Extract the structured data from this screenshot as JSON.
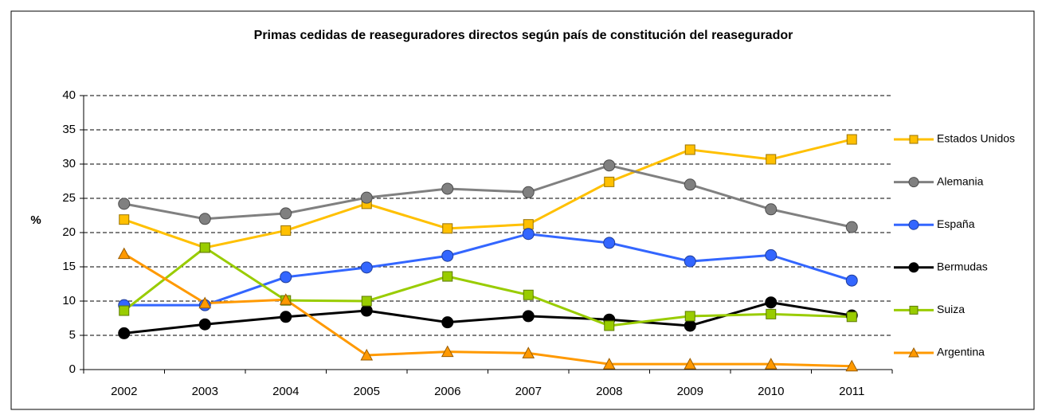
{
  "chart_data": {
    "type": "line",
    "title": "Primas cedidas de reaseguradores directos según país de constitución del reasegurador",
    "y_label": "%",
    "categories": [
      "2002",
      "2003",
      "2004",
      "2005",
      "2006",
      "2007",
      "2008",
      "2009",
      "2010",
      "2011"
    ],
    "series": [
      {
        "name": "Estados Unidos",
        "color": "#FFC000",
        "marker": "square",
        "values": [
          21.9,
          17.8,
          20.3,
          24.2,
          20.6,
          21.2,
          27.4,
          32.1,
          30.7,
          33.6
        ]
      },
      {
        "name": "Alemania",
        "color": "#808080",
        "marker": "circle",
        "values": [
          24.2,
          22.0,
          22.8,
          25.1,
          26.4,
          25.9,
          29.8,
          27.0,
          23.4,
          20.8
        ]
      },
      {
        "name": "España",
        "color": "#3366FF",
        "marker": "circle",
        "values": [
          9.4,
          9.4,
          13.5,
          14.9,
          16.6,
          19.8,
          18.5,
          15.8,
          16.7,
          13.0
        ]
      },
      {
        "name": "Bermudas",
        "color": "#000000",
        "marker": "circle",
        "values": [
          5.3,
          6.6,
          7.7,
          8.6,
          6.9,
          7.8,
          7.3,
          6.4,
          9.8,
          7.9
        ]
      },
      {
        "name": "Suiza",
        "color": "#99CC00",
        "marker": "square",
        "values": [
          8.6,
          17.8,
          10.1,
          10.0,
          13.6,
          10.9,
          6.4,
          7.8,
          8.1,
          7.7
        ]
      },
      {
        "name": "Argentina",
        "color": "#FF9900",
        "marker": "triangle",
        "values": [
          16.9,
          9.7,
          10.2,
          2.1,
          2.6,
          2.4,
          0.8,
          0.8,
          0.8,
          0.5
        ]
      }
    ],
    "ylim": [
      0,
      40
    ],
    "yticks": [
      0,
      5,
      10,
      15,
      20,
      25,
      30,
      35,
      40
    ],
    "grid": true,
    "legend": "right"
  }
}
